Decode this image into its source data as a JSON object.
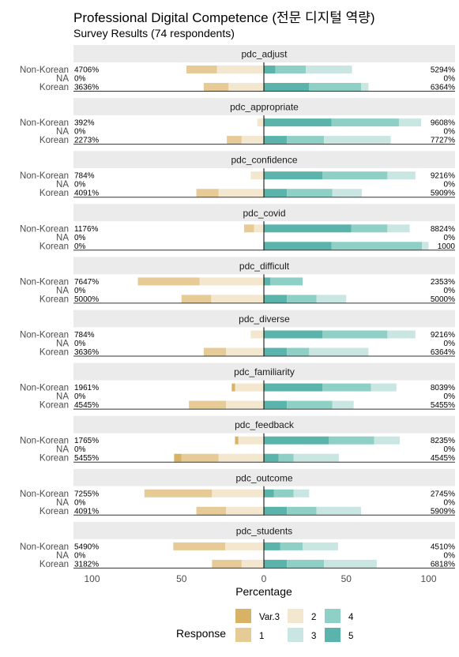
{
  "chart_data": {
    "type": "bar",
    "title": "Professional Digital Competence (전문 디지털 역량)",
    "subtitle": "Survey Results (74 respondents)",
    "xlabel": "Percentage",
    "x_ticks": [
      "100",
      "50",
      "0",
      "50",
      "100"
    ],
    "xlim": [
      -100,
      100
    ],
    "groups": [
      "Non-Korean",
      "NA",
      "Korean"
    ],
    "legend_title": "Response",
    "legend": [
      "Var.3",
      "1",
      "2",
      "3",
      "4",
      "5"
    ],
    "colors": {
      "Var.3": "#d8b365",
      "1": "#e6cb96",
      "2": "#f4e7cf",
      "3": "#c9e6e2",
      "4": "#8fd0c6",
      "5": "#5ab4ac"
    },
    "facets": [
      {
        "name": "pdc_adjust",
        "rows": [
          {
            "group": "Non-Korean",
            "left_label": "4706%",
            "right_label": "5294%",
            "neg": [
              0,
              18.5,
              28.5
            ],
            "pos": [
              0,
              7,
              18.5,
              28
            ]
          },
          {
            "group": "NA",
            "left_label": "0%",
            "right_label": "0%",
            "neg": [
              0,
              0,
              0
            ],
            "pos": [
              0,
              0,
              0,
              0
            ]
          },
          {
            "group": "Korean",
            "left_label": "3636%",
            "right_label": "6364%",
            "neg": [
              0,
              15,
              21.5
            ],
            "pos": [
              0,
              27.5,
              31.5,
              4.5
            ]
          }
        ]
      },
      {
        "name": "pdc_appropriate",
        "rows": [
          {
            "group": "Non-Korean",
            "left_label": "392%",
            "right_label": "9608%",
            "neg": [
              0,
              0,
              4
            ],
            "pos": [
              0,
              41,
              41,
              13.5
            ]
          },
          {
            "group": "NA",
            "left_label": "0%",
            "right_label": "0%",
            "neg": [
              0,
              0,
              0
            ],
            "pos": [
              0,
              0,
              0,
              0
            ]
          },
          {
            "group": "Korean",
            "left_label": "2273%",
            "right_label": "7727%",
            "neg": [
              0,
              9,
              13.5
            ],
            "pos": [
              0,
              14,
              22.5,
              40.5
            ]
          }
        ]
      },
      {
        "name": "pdc_confidence",
        "rows": [
          {
            "group": "Non-Korean",
            "left_label": "784%",
            "right_label": "9216%",
            "neg": [
              0,
              0,
              8
            ],
            "pos": [
              0,
              35.5,
              39.5,
              17
            ]
          },
          {
            "group": "NA",
            "left_label": "0%",
            "right_label": "0%",
            "neg": [
              0,
              0,
              0
            ],
            "pos": [
              0,
              0,
              0,
              0
            ]
          },
          {
            "group": "Korean",
            "left_label": "4091%",
            "right_label": "5909%",
            "neg": [
              0,
              13.5,
              27.5
            ],
            "pos": [
              0,
              14,
              27.5,
              18
            ]
          }
        ]
      },
      {
        "name": "pdc_covid",
        "rows": [
          {
            "group": "Non-Korean",
            "left_label": "1176%",
            "right_label": "8824%",
            "neg": [
              0,
              6,
              6
            ],
            "pos": [
              0,
              53,
              22,
              13.5
            ]
          },
          {
            "group": "NA",
            "left_label": "0%",
            "right_label": "0%",
            "neg": [
              0,
              0,
              0
            ],
            "pos": [
              0,
              0,
              0,
              0
            ]
          },
          {
            "group": "Korean",
            "left_label": "0%",
            "right_label": "1000",
            "neg": [
              0,
              0,
              0
            ],
            "pos": [
              0,
              41,
              55,
              4
            ]
          }
        ]
      },
      {
        "name": "pdc_difficult",
        "rows": [
          {
            "group": "Non-Korean",
            "left_label": "7647%",
            "right_label": "2353%",
            "neg": [
              0,
              37.5,
              39
            ],
            "pos": [
              0,
              4,
              19.5,
              0
            ]
          },
          {
            "group": "NA",
            "left_label": "0%",
            "right_label": "0%",
            "neg": [
              0,
              0,
              0
            ],
            "pos": [
              0,
              0,
              0,
              0
            ]
          },
          {
            "group": "Korean",
            "left_label": "5000%",
            "right_label": "5000%",
            "neg": [
              0,
              18,
              32
            ],
            "pos": [
              0,
              14,
              18,
              18
            ]
          }
        ]
      },
      {
        "name": "pdc_diverse",
        "rows": [
          {
            "group": "Non-Korean",
            "left_label": "784%",
            "right_label": "9216%",
            "neg": [
              0,
              0,
              8
            ],
            "pos": [
              0,
              35.5,
              39.5,
              17
            ]
          },
          {
            "group": "NA",
            "left_label": "0%",
            "right_label": "0%",
            "neg": [
              0,
              0,
              0
            ],
            "pos": [
              0,
              0,
              0,
              0
            ]
          },
          {
            "group": "Korean",
            "left_label": "3636%",
            "right_label": "6364%",
            "neg": [
              0,
              13.5,
              23
            ],
            "pos": [
              0,
              14,
              13.5,
              36
            ]
          }
        ]
      },
      {
        "name": "pdc_familiarity",
        "rows": [
          {
            "group": "Non-Korean",
            "left_label": "1961%",
            "right_label": "8039%",
            "neg": [
              2,
              0,
              17.5
            ],
            "pos": [
              0,
              35.5,
              29.5,
              15.5
            ]
          },
          {
            "group": "NA",
            "left_label": "0%",
            "right_label": "0%",
            "neg": [
              0,
              0,
              0
            ],
            "pos": [
              0,
              0,
              0,
              0
            ]
          },
          {
            "group": "Korean",
            "left_label": "4545%",
            "right_label": "5455%",
            "neg": [
              0,
              22.5,
              23
            ],
            "pos": [
              0,
              14,
              27.5,
              13
            ]
          }
        ]
      },
      {
        "name": "pdc_feedback",
        "rows": [
          {
            "group": "Non-Korean",
            "left_label": "1765%",
            "right_label": "8235%",
            "neg": [
              2,
              0,
              15.5
            ],
            "pos": [
              0,
              39.5,
              27.5,
              15.5
            ]
          },
          {
            "group": "NA",
            "left_label": "0%",
            "right_label": "0%",
            "neg": [
              0,
              0,
              0
            ],
            "pos": [
              0,
              0,
              0,
              0
            ]
          },
          {
            "group": "Korean",
            "left_label": "5455%",
            "right_label": "4545%",
            "neg": [
              4.5,
              22.5,
              27.5
            ],
            "pos": [
              0,
              9,
              9,
              27.5
            ]
          }
        ]
      },
      {
        "name": "pdc_outcome",
        "rows": [
          {
            "group": "Non-Korean",
            "left_label": "7255%",
            "right_label": "2745%",
            "neg": [
              0,
              41,
              31.5
            ],
            "pos": [
              0,
              6,
              12,
              9.5
            ]
          },
          {
            "group": "NA",
            "left_label": "0%",
            "right_label": "0%",
            "neg": [
              0,
              0,
              0
            ],
            "pos": [
              0,
              0,
              0,
              0
            ]
          },
          {
            "group": "Korean",
            "left_label": "4091%",
            "right_label": "5909%",
            "neg": [
              0,
              18,
              23
            ],
            "pos": [
              0,
              14,
              18,
              27
            ]
          }
        ]
      },
      {
        "name": "pdc_students",
        "rows": [
          {
            "group": "Non-Korean",
            "left_label": "5490%",
            "right_label": "4510%",
            "neg": [
              0,
              31.5,
              23.5
            ],
            "pos": [
              0,
              10,
              13.5,
              21.5
            ]
          },
          {
            "group": "NA",
            "left_label": "0%",
            "right_label": "0%",
            "neg": [
              0,
              0,
              0
            ],
            "pos": [
              0,
              0,
              0,
              0
            ]
          },
          {
            "group": "Korean",
            "left_label": "3182%",
            "right_label": "6818%",
            "neg": [
              0,
              18,
              13.5
            ],
            "pos": [
              0,
              14,
              22.5,
              32
            ]
          }
        ]
      }
    ]
  }
}
